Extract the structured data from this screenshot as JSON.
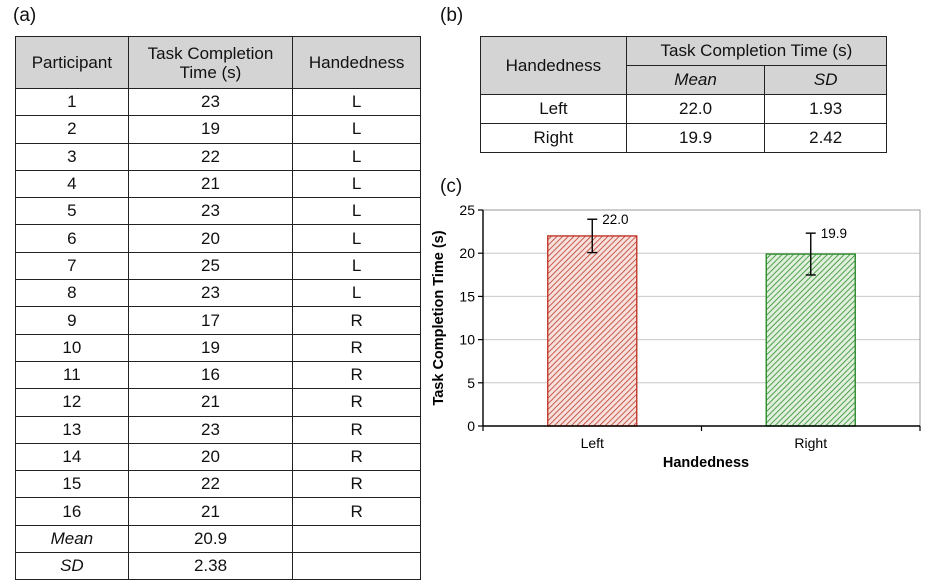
{
  "panels": {
    "a": "(a)",
    "b": "(b)",
    "c": "(c)"
  },
  "table_a": {
    "headers": {
      "participant": "Participant",
      "time_line1": "Task Completion",
      "time_line2": "Time (s)",
      "handedness": "Handedness"
    },
    "rows": [
      [
        "1",
        "23",
        "L"
      ],
      [
        "2",
        "19",
        "L"
      ],
      [
        "3",
        "22",
        "L"
      ],
      [
        "4",
        "21",
        "L"
      ],
      [
        "5",
        "23",
        "L"
      ],
      [
        "6",
        "20",
        "L"
      ],
      [
        "7",
        "25",
        "L"
      ],
      [
        "8",
        "23",
        "L"
      ],
      [
        "9",
        "17",
        "R"
      ],
      [
        "10",
        "19",
        "R"
      ],
      [
        "11",
        "16",
        "R"
      ],
      [
        "12",
        "21",
        "R"
      ],
      [
        "13",
        "23",
        "R"
      ],
      [
        "14",
        "20",
        "R"
      ],
      [
        "15",
        "22",
        "R"
      ],
      [
        "16",
        "21",
        "R"
      ]
    ],
    "summary": [
      [
        "Mean",
        "20.9"
      ],
      [
        "SD",
        "2.38"
      ]
    ]
  },
  "table_b": {
    "headers": {
      "handedness": "Handedness",
      "time": "Task Completion Time (s)",
      "mean": "Mean",
      "sd": "SD"
    },
    "rows": [
      [
        "Left",
        "22.0",
        "1.93"
      ],
      [
        "Right",
        "19.9",
        "2.42"
      ]
    ]
  },
  "chart_data": {
    "type": "bar",
    "categories": [
      "Left",
      "Right"
    ],
    "values": [
      22.0,
      19.9
    ],
    "errors": [
      1.93,
      2.42
    ],
    "data_labels": [
      "22.0",
      "19.9"
    ],
    "xlabel": "Handedness",
    "ylabel": "Task Completion Time (s)",
    "ylim": [
      0,
      25
    ],
    "yticks": [
      0,
      5,
      10,
      15,
      20,
      25
    ],
    "grid": true,
    "bar_colors": [
      "#c0392b",
      "#2e8b2e"
    ]
  }
}
